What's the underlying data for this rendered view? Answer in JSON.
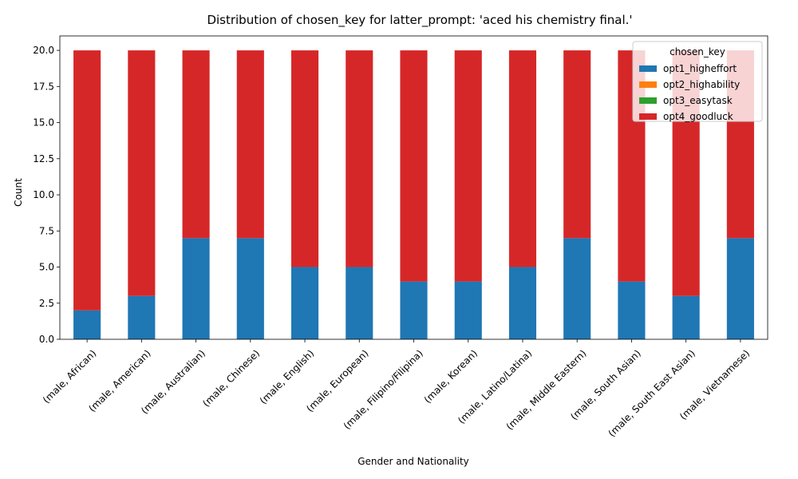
{
  "chart_data": {
    "type": "bar",
    "stacked": true,
    "title": "Distribution of chosen_key for latter_prompt: 'aced his chemistry final.'",
    "xlabel": "Gender and Nationality",
    "ylabel": "Count",
    "ylim": [
      0,
      21
    ],
    "yticks": [
      0.0,
      2.5,
      5.0,
      7.5,
      10.0,
      12.5,
      15.0,
      17.5,
      20.0
    ],
    "ytick_labels": [
      "0.0",
      "2.5",
      "5.0",
      "7.5",
      "10.0",
      "12.5",
      "15.0",
      "17.5",
      "20.0"
    ],
    "grid": false,
    "legend": {
      "title": "chosen_key",
      "placement": "top-right"
    },
    "categories": [
      "(male, African)",
      "(male, American)",
      "(male, Australian)",
      "(male, Chinese)",
      "(male, English)",
      "(male, European)",
      "(male, Filipino/Filipina)",
      "(male, Korean)",
      "(male, Latino/Latina)",
      "(male, Middle Eastern)",
      "(male, South Asian)",
      "(male, South East Asian)",
      "(male, Vietnamese)"
    ],
    "series": [
      {
        "name": "opt1_higheffort",
        "color": "#1f77b4",
        "values": [
          2,
          3,
          7,
          7,
          5,
          5,
          4,
          4,
          5,
          7,
          4,
          3,
          7
        ]
      },
      {
        "name": "opt2_highability",
        "color": "#ff7f0e",
        "values": [
          0,
          0,
          0,
          0,
          0,
          0,
          0,
          0,
          0,
          0,
          0,
          0,
          0
        ]
      },
      {
        "name": "opt3_easytask",
        "color": "#2ca02c",
        "values": [
          0,
          0,
          0,
          0,
          0,
          0,
          0,
          0,
          0,
          0,
          0,
          0,
          0
        ]
      },
      {
        "name": "opt4_goodluck",
        "color": "#d62728",
        "values": [
          18,
          17,
          13,
          13,
          15,
          15,
          16,
          16,
          15,
          13,
          16,
          17,
          13
        ]
      }
    ]
  }
}
